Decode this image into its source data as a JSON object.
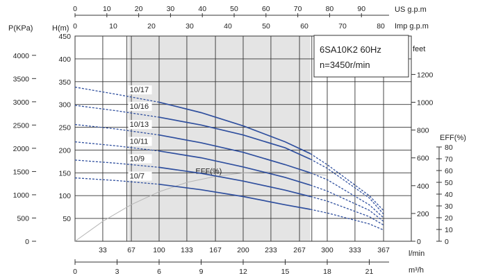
{
  "chart_data": {
    "type": "line",
    "model_label": "6SA10K2  60Hz",
    "speed_label": "n=3450r/min",
    "units": {
      "left_pressure": "P(KPa)",
      "left_head": "H(m)",
      "right_feet": "feet",
      "right_eff": "EFF(%)",
      "top_us": "US g.p.m",
      "top_imp": "Imp g.p.m",
      "bottom_lmin": "l/min",
      "bottom_m3h": "m³/h"
    },
    "axes": {
      "m3h": {
        "range": [
          0,
          24
        ],
        "ticks": [
          0,
          3,
          6,
          9,
          12,
          15,
          18,
          21
        ]
      },
      "lmin_ticks": [
        33,
        67,
        100,
        133,
        167,
        200,
        233,
        267,
        300,
        333,
        367
      ],
      "us_gpm_ticks": [
        0,
        10,
        20,
        30,
        40,
        50,
        60,
        70,
        80,
        90
      ],
      "imp_gpm_ticks": [
        0,
        10,
        20,
        30,
        40,
        50,
        60,
        70,
        80
      ],
      "head_m": {
        "range": [
          0,
          450
        ],
        "ticks": [
          50,
          100,
          150,
          200,
          250,
          300,
          350,
          400,
          450
        ]
      },
      "pressure_kpa_ticks": [
        0,
        500,
        1000,
        1500,
        2000,
        2500,
        3000,
        3500,
        4000
      ],
      "feet_ticks": [
        0,
        200,
        400,
        600,
        800,
        1000,
        1200
      ],
      "eff_ticks": [
        0,
        10,
        20,
        30,
        40,
        50,
        60,
        70,
        80
      ]
    },
    "recommended_range_m3h": [
      3.8,
      16.8
    ],
    "series": [
      {
        "name": "10/17",
        "x": [
          0,
          3,
          6,
          9,
          12,
          15,
          16.8,
          18,
          21,
          22
        ],
        "y": [
          338,
          322,
          305,
          282,
          253,
          218,
          192,
          168,
          100,
          68
        ]
      },
      {
        "name": "10/16",
        "x": [
          0,
          3,
          6,
          9,
          12,
          15,
          16.8,
          18,
          21,
          22
        ],
        "y": [
          298,
          286,
          272,
          255,
          233,
          205,
          180,
          160,
          95,
          60
        ]
      },
      {
        "name": "10/13",
        "x": [
          0,
          3,
          6,
          9,
          12,
          15,
          16.8,
          18,
          21,
          22
        ],
        "y": [
          256,
          246,
          233,
          216,
          195,
          168,
          150,
          135,
          80,
          52
        ]
      },
      {
        "name": "10/11",
        "x": [
          0,
          3,
          6,
          9,
          12,
          15,
          16.8,
          18,
          21,
          22
        ],
        "y": [
          218,
          209,
          198,
          183,
          163,
          140,
          123,
          110,
          68,
          44
        ]
      },
      {
        "name": "10/9",
        "x": [
          0,
          3,
          6,
          9,
          12,
          15,
          16.8,
          18,
          21,
          22
        ],
        "y": [
          178,
          171,
          162,
          149,
          132,
          112,
          98,
          88,
          54,
          36
        ]
      },
      {
        "name": "10/7",
        "x": [
          0,
          3,
          6,
          9,
          12,
          15,
          16.8,
          18,
          21,
          22
        ],
        "y": [
          139,
          133,
          125,
          113,
          98,
          80,
          70,
          62,
          38,
          25
        ]
      }
    ],
    "efficiency": {
      "label": "EFF(%)",
      "x": [
        0,
        2,
        4,
        6,
        8,
        10,
        12,
        14,
        16,
        18
      ],
      "y": [
        0,
        17,
        31,
        42,
        50,
        55,
        58,
        59,
        58,
        56
      ]
    }
  }
}
